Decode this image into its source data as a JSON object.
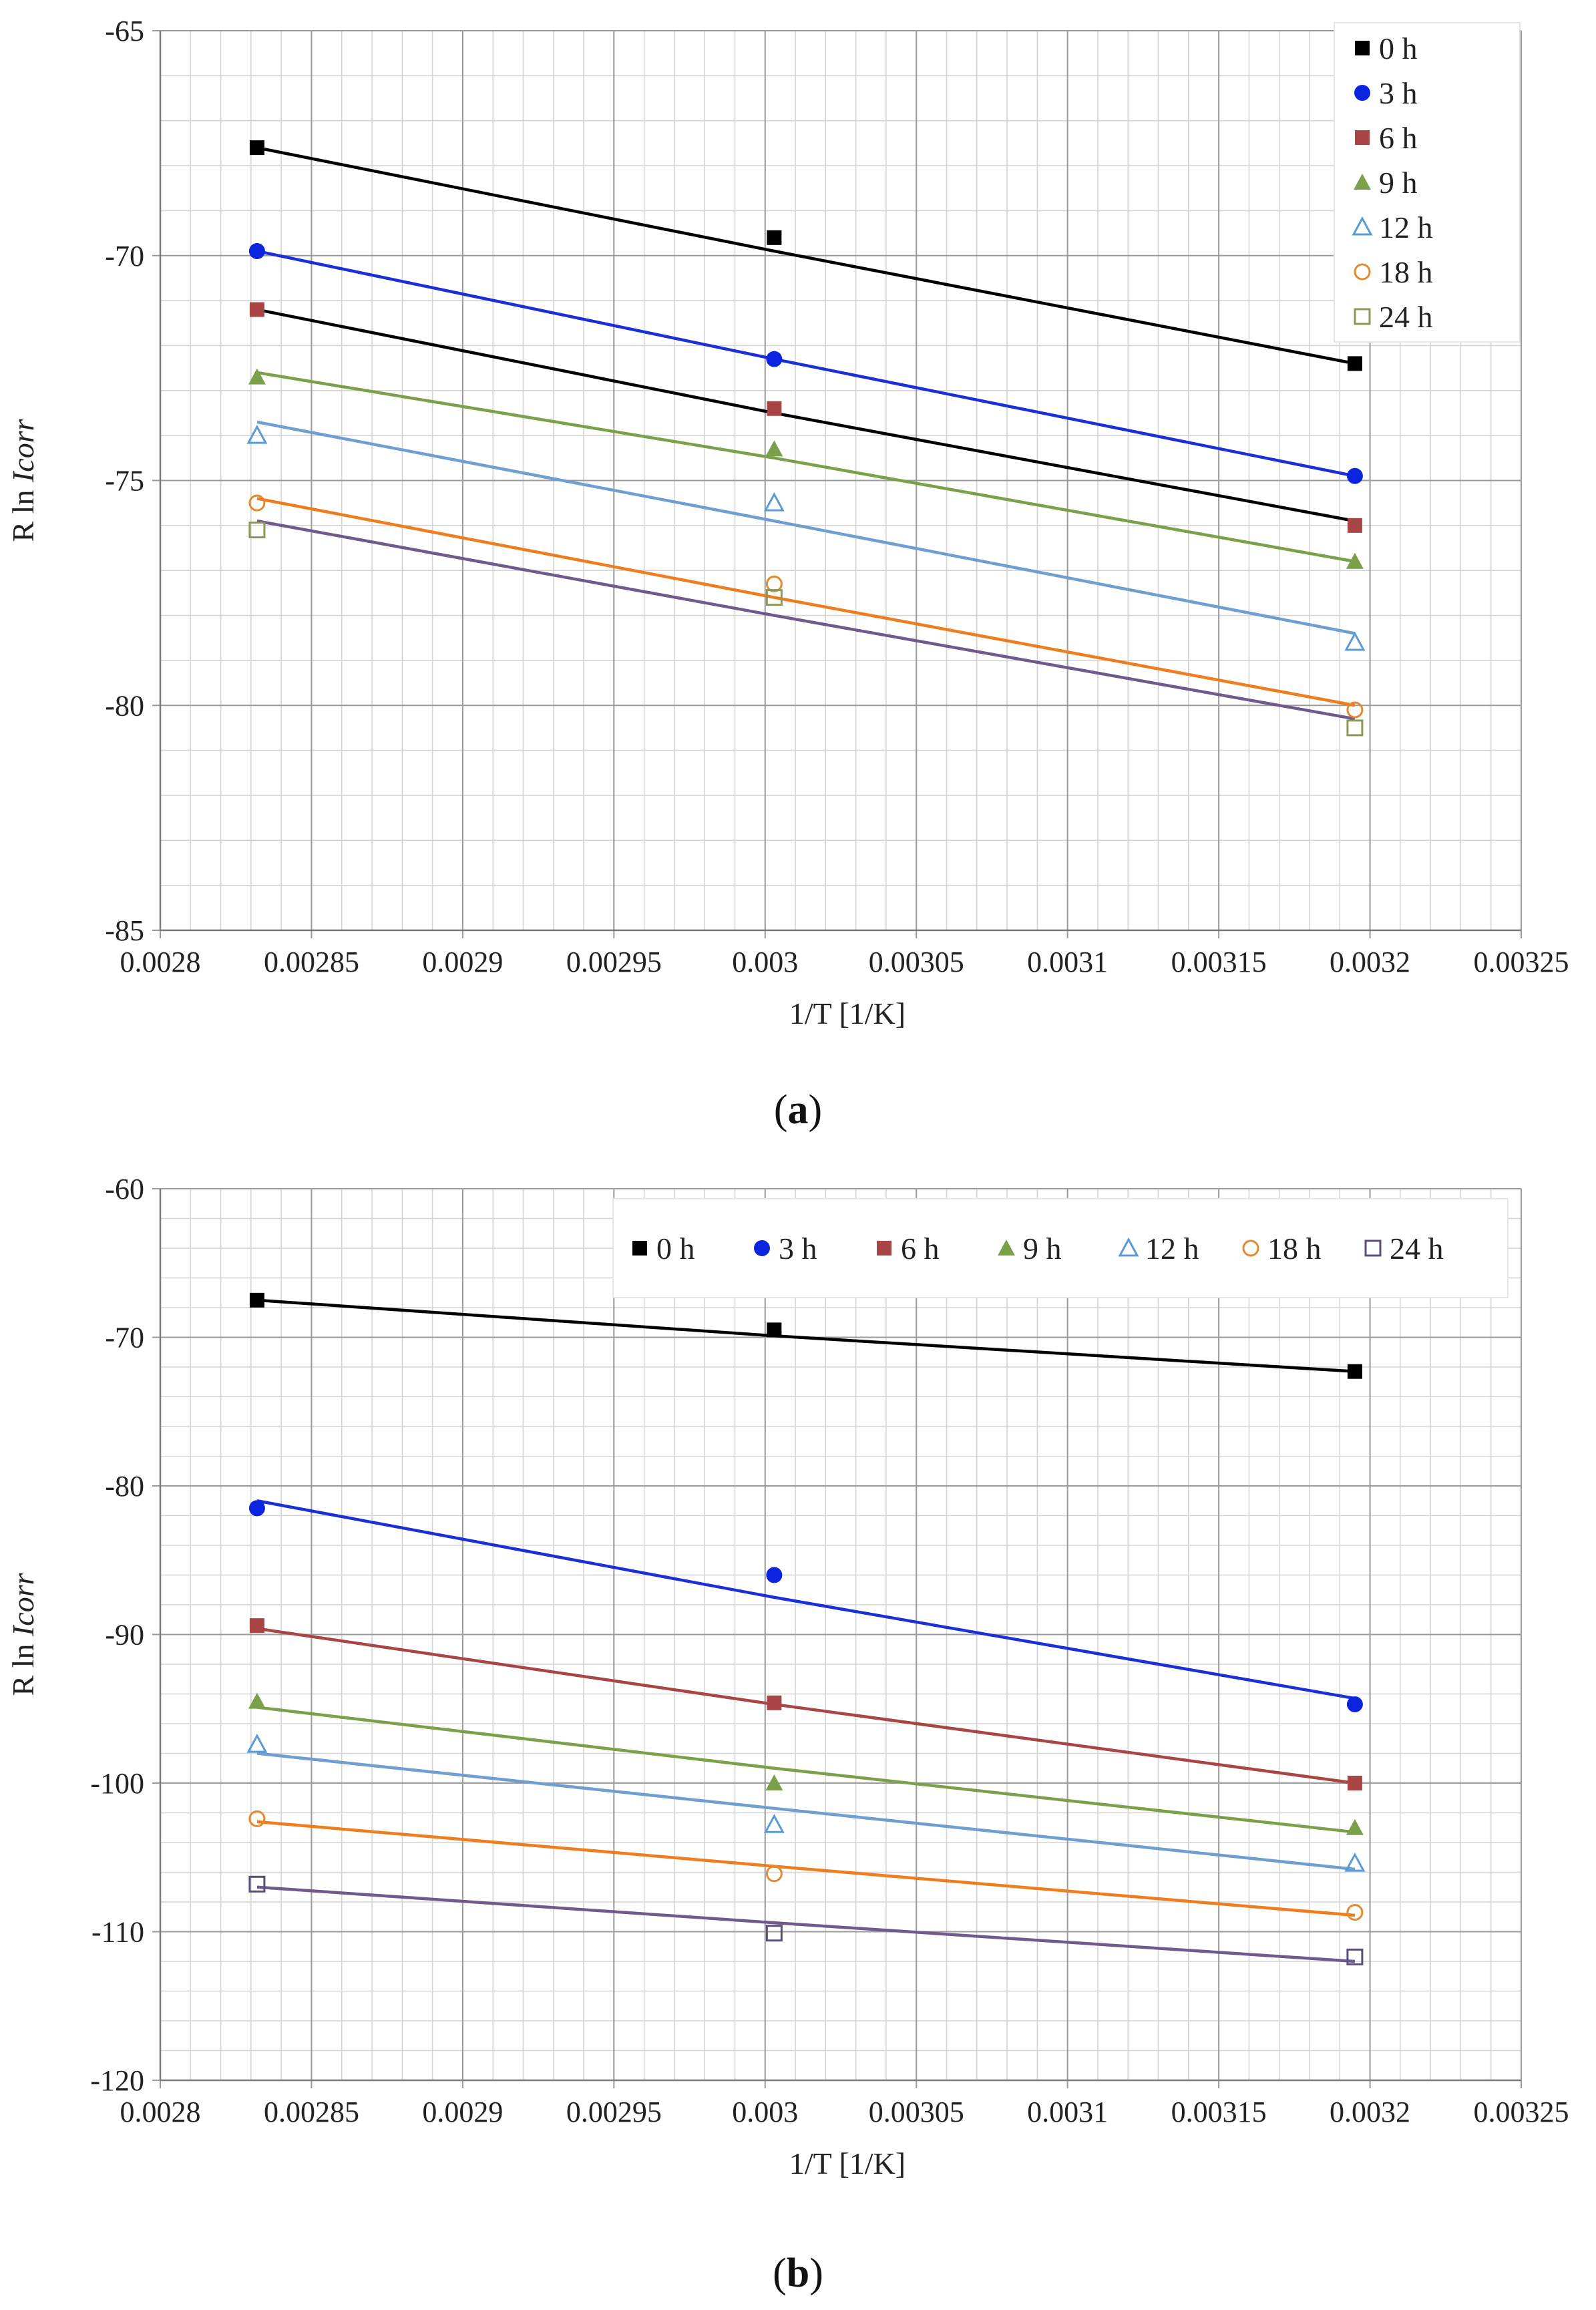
{
  "chart_data": [
    {
      "type": "scatter",
      "panel_label": "a",
      "title": "",
      "xlabel": "1/T [1/K]",
      "ylabel_prefix": "R ln ",
      "ylabel_italic": "Icorr",
      "xlim": [
        0.0028,
        0.00325
      ],
      "ylim": [
        -85,
        -65
      ],
      "x_ticks": [
        0.0028,
        0.00285,
        0.0029,
        0.00295,
        0.003,
        0.00305,
        0.0031,
        0.00315,
        0.0032,
        0.00325
      ],
      "x_tick_labels": [
        "0.0028",
        "0.00285",
        "0.0029",
        "0.00295",
        "0.003",
        "0.00305",
        "0.0031",
        "0.00315",
        "0.0032",
        "0.00325"
      ],
      "y_ticks": [
        -85,
        -80,
        -75,
        -70,
        -65
      ],
      "y_tick_labels": [
        "-85",
        "-80",
        "-75",
        "-70",
        "-65"
      ],
      "grid": true,
      "legend_position": "top-right",
      "legend_layout": "vertical",
      "x": [
        0.002832,
        0.003003,
        0.003195
      ],
      "series": [
        {
          "name": "0 h",
          "marker": "square-filled",
          "color": "#000000",
          "line_color": "#000000",
          "values": [
            -67.6,
            -69.6,
            -72.4
          ],
          "trend": [
            -67.6,
            -69.9,
            -72.4
          ]
        },
        {
          "name": "3 h",
          "marker": "circle-filled",
          "color": "#0b24e0",
          "line_color": "#1a2fd6",
          "values": [
            -69.9,
            -72.3,
            -74.9
          ],
          "trend": [
            -69.9,
            -72.3,
            -74.9
          ]
        },
        {
          "name": "6 h",
          "marker": "square-filled",
          "color": "#a94545",
          "line_color": "#000000",
          "values": [
            -71.2,
            -73.4,
            -76.0
          ],
          "trend": [
            -71.2,
            -73.5,
            -75.9
          ]
        },
        {
          "name": "9 h",
          "marker": "triangle-filled",
          "color": "#7aa14a",
          "line_color": "#7aa14a",
          "values": [
            -72.7,
            -74.3,
            -76.8
          ],
          "trend": [
            -72.6,
            -74.5,
            -76.8
          ]
        },
        {
          "name": "12 h",
          "marker": "triangle-open",
          "color": "#5b9bd5",
          "line_color": "#6f9fd0",
          "values": [
            -74.0,
            -75.5,
            -78.6
          ],
          "trend": [
            -73.7,
            -75.9,
            -78.4
          ]
        },
        {
          "name": "18 h",
          "marker": "circle-open",
          "color": "#e48a2e",
          "line_color": "#ee7d1e",
          "values": [
            -75.5,
            -77.3,
            -80.1
          ],
          "trend": [
            -75.4,
            -77.6,
            -80.0
          ]
        },
        {
          "name": "24 h",
          "marker": "square-open",
          "color": "#8a9a56",
          "line_color": "#6f5a8e",
          "values": [
            -76.1,
            -77.6,
            -80.5
          ],
          "trend": [
            -75.9,
            -78.0,
            -80.3
          ]
        }
      ]
    },
    {
      "type": "scatter",
      "panel_label": "b",
      "title": "",
      "xlabel": "1/T [1/K]",
      "ylabel_prefix": "R ln ",
      "ylabel_italic": "Icorr",
      "xlim": [
        0.0028,
        0.00325
      ],
      "ylim": [
        -120,
        -60
      ],
      "x_ticks": [
        0.0028,
        0.00285,
        0.0029,
        0.00295,
        0.003,
        0.00305,
        0.0031,
        0.00315,
        0.0032,
        0.00325
      ],
      "x_tick_labels": [
        "0.0028",
        "0.00285",
        "0.0029",
        "0.00295",
        "0.003",
        "0.00305",
        "0.0031",
        "0.00315",
        "0.0032",
        "0.00325"
      ],
      "y_ticks": [
        -120,
        -110,
        -100,
        -90,
        -80,
        -70,
        -60
      ],
      "y_tick_labels": [
        "-120",
        "-110",
        "-100",
        "-90",
        "-80",
        "-70",
        "-60"
      ],
      "grid": true,
      "legend_position": "top-right",
      "legend_layout": "horizontal",
      "x": [
        0.002832,
        0.003003,
        0.003195
      ],
      "series": [
        {
          "name": "0 h",
          "marker": "square-filled",
          "color": "#000000",
          "line_color": "#000000",
          "values": [
            -67.5,
            -69.5,
            -72.3
          ],
          "trend": [
            -67.5,
            -69.9,
            -72.3
          ]
        },
        {
          "name": "3 h",
          "marker": "circle-filled",
          "color": "#0b24e0",
          "line_color": "#1a2fd6",
          "values": [
            -81.5,
            -86.0,
            -94.7
          ],
          "trend": [
            -81.0,
            -87.5,
            -94.3
          ]
        },
        {
          "name": "6 h",
          "marker": "square-filled",
          "color": "#a94545",
          "line_color": "#a94545",
          "values": [
            -89.4,
            -94.6,
            -100.0
          ],
          "trend": [
            -89.6,
            -94.7,
            -100.0
          ]
        },
        {
          "name": "9 h",
          "marker": "triangle-filled",
          "color": "#7aa14a",
          "line_color": "#7aa14a",
          "values": [
            -94.5,
            -100.0,
            -103.0
          ],
          "trend": [
            -94.9,
            -99.0,
            -103.3
          ]
        },
        {
          "name": "12 h",
          "marker": "triangle-open",
          "color": "#5b9bd5",
          "line_color": "#6f9fd0",
          "values": [
            -97.4,
            -102.8,
            -105.4
          ],
          "trend": [
            -98.0,
            -101.7,
            -105.8
          ]
        },
        {
          "name": "18 h",
          "marker": "circle-open",
          "color": "#e48a2e",
          "line_color": "#ee7d1e",
          "values": [
            -102.4,
            -106.1,
            -108.7
          ],
          "trend": [
            -102.6,
            -105.6,
            -108.9
          ]
        },
        {
          "name": "24 h",
          "marker": "square-open",
          "color": "#5b4e7a",
          "line_color": "#6f5a8e",
          "values": [
            -106.8,
            -110.1,
            -111.7
          ],
          "trend": [
            -107.0,
            -109.4,
            -112.0
          ]
        }
      ]
    }
  ]
}
